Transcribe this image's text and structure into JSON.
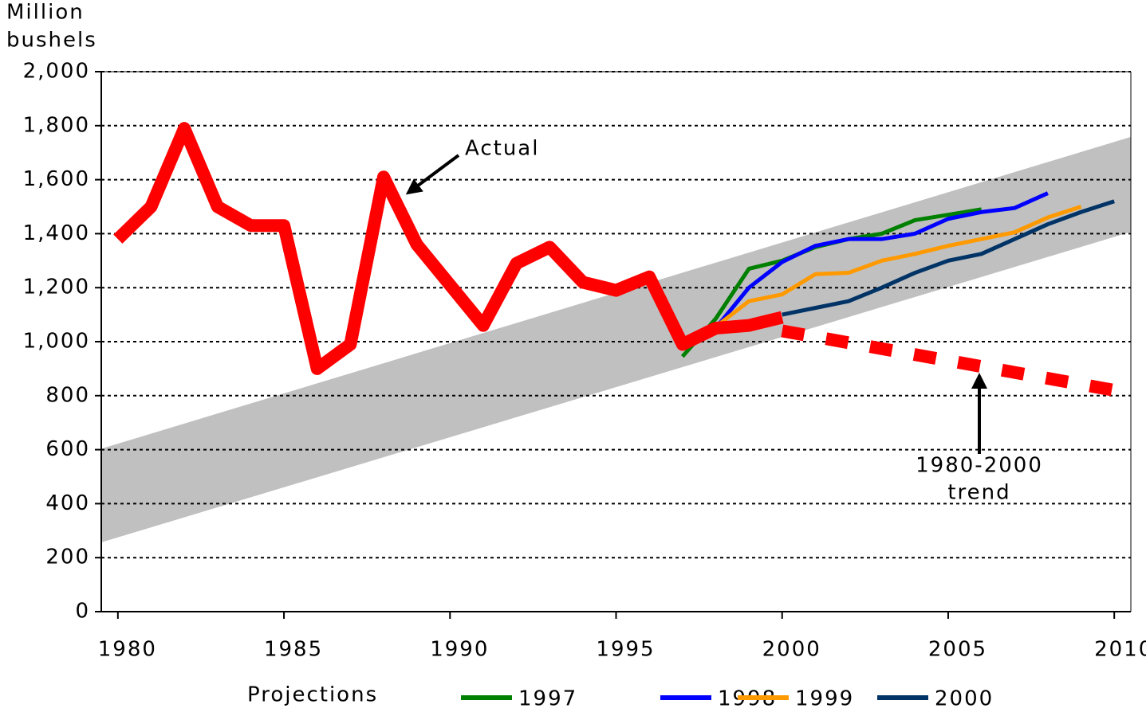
{
  "chart_data": {
    "type": "line",
    "ylabel": [
      "Million",
      "bushels"
    ],
    "xlim": [
      1979.5,
      2010.5
    ],
    "xticks": [
      1980,
      1985,
      1990,
      1995,
      2000,
      2005,
      2010
    ],
    "ylim": [
      0,
      2000
    ],
    "yticks": [
      0,
      200,
      400,
      600,
      800,
      {
        "value": 1000,
        "label": "1,000"
      },
      {
        "value": 1200,
        "label": "1,200"
      },
      {
        "value": 1400,
        "label": "1,400"
      },
      {
        "value": 1600,
        "label": "1,600"
      },
      {
        "value": 1800,
        "label": "1,800"
      },
      {
        "value": 2000,
        "label": "2,000"
      }
    ],
    "grid": true,
    "band": {
      "x": [
        1979.5,
        2010.5
      ],
      "upper": [
        605,
        1760
      ],
      "lower": [
        255,
        1405
      ],
      "color": "#c0c0c0"
    },
    "actual": {
      "name": "Actual",
      "color": "#ff0000",
      "x": [
        1980,
        1981,
        1982,
        1983,
        1984,
        1985,
        1986,
        1987,
        1988,
        1989,
        1990,
        1991,
        1992,
        1993,
        1994,
        1995,
        1996,
        1997,
        1998,
        1999,
        2000
      ],
      "values": [
        1380,
        1500,
        1790,
        1500,
        1430,
        1430,
        900,
        990,
        1610,
        1360,
        1210,
        1060,
        1290,
        1350,
        1220,
        1190,
        1240,
        990,
        1050,
        1060,
        1090
      ]
    },
    "trend": {
      "label": [
        "1980-2000",
        "trend"
      ],
      "color": "#ff0000",
      "x": [
        2000,
        2010
      ],
      "values": [
        1040,
        820
      ]
    },
    "legend_title": "Projections",
    "series": [
      {
        "name": "1997",
        "color": "#008000",
        "x": [
          1997,
          1998,
          1999,
          2000,
          2001,
          2002,
          2003,
          2004,
          2005,
          2006
        ],
        "values": [
          945,
          1085,
          1270,
          1300,
          1350,
          1380,
          1400,
          1450,
          1470,
          1490
        ]
      },
      {
        "name": "1998",
        "color": "#0000ff",
        "x": [
          1998,
          1999,
          2000,
          2001,
          2002,
          2003,
          2004,
          2005,
          2006,
          2007,
          2008
        ],
        "values": [
          1050,
          1200,
          1295,
          1355,
          1380,
          1380,
          1400,
          1455,
          1480,
          1495,
          1550
        ]
      },
      {
        "name": "1999",
        "color": "#ff9900",
        "x": [
          1998,
          1999,
          2000,
          2001,
          2002,
          2003,
          2004,
          2005,
          2006,
          2007,
          2008,
          2009
        ],
        "values": [
          1055,
          1150,
          1175,
          1250,
          1255,
          1300,
          1325,
          1355,
          1380,
          1405,
          1460,
          1500
        ]
      },
      {
        "name": "2000",
        "color": "#003366",
        "x": [
          2000,
          2001,
          2002,
          2003,
          2004,
          2005,
          2006,
          2007,
          2008,
          2009,
          2010
        ],
        "values": [
          1100,
          1125,
          1150,
          1200,
          1255,
          1300,
          1325,
          1380,
          1435,
          1480,
          1520
        ]
      }
    ]
  }
}
